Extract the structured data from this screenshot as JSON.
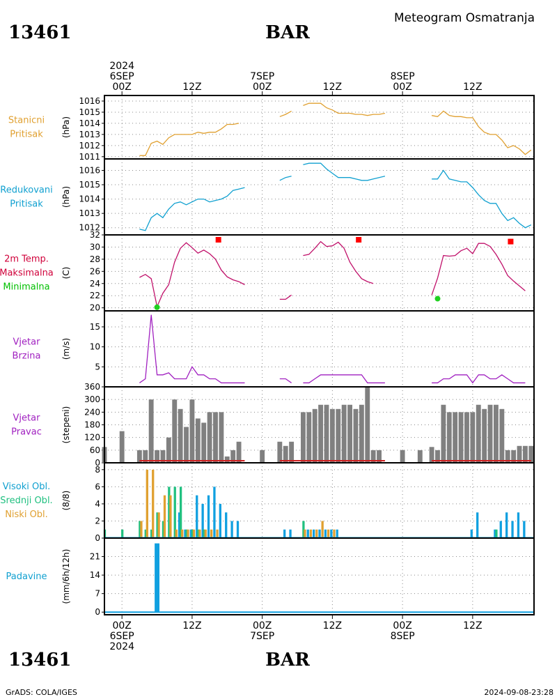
{
  "header": {
    "station_id": "13461",
    "station_name": "BAR",
    "title": "Meteogram Osmatranja"
  },
  "footer": {
    "credit": "GrADS: COLA/IGES",
    "timestamp": "2024-09-08-23:28"
  },
  "time_axis": {
    "top_labels": [
      {
        "lines": [
          "2024",
          "6SEP",
          "00Z"
        ],
        "hour": 0
      },
      {
        "lines": [
          "12Z"
        ],
        "hour": 12
      },
      {
        "lines": [
          "7SEP",
          "00Z"
        ],
        "hour": 24
      },
      {
        "lines": [
          "12Z"
        ],
        "hour": 36
      },
      {
        "lines": [
          "8SEP",
          "00Z"
        ],
        "hour": 48
      },
      {
        "lines": [
          "12Z"
        ],
        "hour": 60
      }
    ],
    "bottom_labels": [
      {
        "lines": [
          "00Z",
          "6SEP",
          "2024"
        ],
        "hour": 0
      },
      {
        "lines": [
          "12Z"
        ],
        "hour": 12
      },
      {
        "lines": [
          "00Z",
          "7SEP"
        ],
        "hour": 24
      },
      {
        "lines": [
          "12Z"
        ],
        "hour": 36
      },
      {
        "lines": [
          "00Z",
          "8SEP"
        ],
        "hour": 48
      },
      {
        "lines": [
          "12Z"
        ],
        "hour": 60
      }
    ],
    "hour_range": [
      -3,
      70.5
    ]
  },
  "colors": {
    "station_pressure": "#e0a030",
    "sea_pressure": "#10a0d0",
    "tmax_label": "#d0003a",
    "tmin_label": "#00c000",
    "tmax_marker": "#ff0000",
    "tmin_marker": "#20d020",
    "temp_line": "#c0106a",
    "wind": "#a020c0",
    "wind_bar": "#808080",
    "wind_base": "#d02020",
    "cloud_high": "#10a0e0",
    "cloud_mid": "#20c080",
    "cloud_low": "#e0a030",
    "precip": "#10a0e0"
  },
  "chart_data": [
    {
      "id": "station_pressure",
      "type": "line",
      "label": [
        "Stanicni",
        "Pritisak"
      ],
      "label_color": "#e0a030",
      "ylabel": "(hPa)",
      "ylim": [
        1010.8,
        1016.5
      ],
      "yticks": [
        1011,
        1012,
        1013,
        1014,
        1015,
        1016
      ],
      "series": [
        {
          "color": "#e0a030",
          "x": [
            3,
            4,
            5,
            6,
            7,
            8,
            9,
            10,
            11,
            12,
            13,
            14,
            15,
            16,
            17,
            18,
            19,
            20,
            21
          ],
          "y": [
            1011.1,
            1011.1,
            1012.2,
            1012.4,
            1012.1,
            1012.7,
            1013.0,
            1013.0,
            1013.0,
            1013.0,
            1013.2,
            1013.1,
            1013.2,
            1013.2,
            1013.5,
            1013.9,
            1013.9,
            1014.0,
            null
          ]
        },
        {
          "color": "#e0a030",
          "x": [
            27,
            28,
            29,
            30,
            31,
            32,
            33,
            34,
            35,
            36,
            37,
            38,
            39,
            40,
            41,
            42,
            43,
            44,
            45
          ],
          "y": [
            1014.6,
            1014.8,
            1015.1,
            null,
            1015.6,
            1015.8,
            1015.8,
            1015.8,
            1015.4,
            1015.2,
            1014.9,
            1014.9,
            1014.9,
            1014.8,
            1014.8,
            1014.7,
            1014.8,
            1014.8,
            1014.9
          ]
        },
        {
          "color": "#e0a030",
          "x": [
            53,
            54,
            55,
            56,
            57,
            58,
            59,
            60,
            61,
            62,
            63,
            64,
            65,
            66,
            67,
            68,
            69,
            70
          ],
          "y": [
            1014.7,
            1014.6,
            1015.1,
            1014.7,
            1014.6,
            1014.6,
            1014.5,
            1014.5,
            1013.7,
            1013.2,
            1013.0,
            1013.0,
            1012.5,
            1011.8,
            1012.0,
            1011.7,
            1011.2,
            1011.6
          ]
        }
      ]
    },
    {
      "id": "sea_pressure",
      "type": "line",
      "label": [
        "Redukovani",
        "Pritisak"
      ],
      "label_color": "#10a0d0",
      "ylabel": "(hPa)",
      "ylim": [
        1011.5,
        1016.8
      ],
      "yticks": [
        1012,
        1013,
        1014,
        1015,
        1016
      ],
      "series": [
        {
          "color": "#10a0d0",
          "x": [
            3,
            4,
            5,
            6,
            7,
            8,
            9,
            10,
            11,
            12,
            13,
            14,
            15,
            16,
            17,
            18,
            19,
            20,
            21
          ],
          "y": [
            1011.9,
            1011.8,
            1012.7,
            1013.0,
            1012.7,
            1013.3,
            1013.7,
            1013.8,
            1013.6,
            1013.8,
            1014.0,
            1014.0,
            1013.8,
            1013.9,
            1014.0,
            1014.2,
            1014.6,
            1014.7,
            1014.8
          ]
        },
        {
          "color": "#10a0d0",
          "x": [
            27,
            28,
            29,
            30,
            31,
            32,
            33,
            34,
            35,
            36,
            37,
            38,
            39,
            40,
            41,
            42,
            43,
            44,
            45
          ],
          "y": [
            1015.3,
            1015.5,
            1015.6,
            null,
            1016.4,
            1016.5,
            1016.5,
            1016.5,
            1016.1,
            1015.8,
            1015.5,
            1015.5,
            1015.5,
            1015.4,
            1015.3,
            1015.3,
            1015.4,
            1015.5,
            1015.6
          ]
        },
        {
          "color": "#10a0d0",
          "x": [
            53,
            54,
            55,
            56,
            57,
            58,
            59,
            60,
            61,
            62,
            63,
            64,
            65,
            66,
            67,
            68,
            69,
            70
          ],
          "y": [
            1015.4,
            1015.4,
            1016.0,
            1015.4,
            1015.3,
            1015.2,
            1015.2,
            1014.8,
            1014.3,
            1013.9,
            1013.7,
            1013.7,
            1013.0,
            1012.5,
            1012.7,
            1012.3,
            1012.0,
            1012.2
          ]
        }
      ]
    },
    {
      "id": "temperature",
      "type": "line",
      "label": [
        "2m Temp.",
        "Maksimalna",
        "Minimalna"
      ],
      "label_colors": [
        "#d0003a",
        "#d0003a",
        "#00c000"
      ],
      "ylabel": "(C)",
      "ylim": [
        19.5,
        32
      ],
      "yticks": [
        20,
        22,
        24,
        26,
        28,
        30,
        32
      ],
      "series": [
        {
          "color": "#c0106a",
          "x": [
            3,
            4,
            5,
            6,
            7,
            8,
            9,
            10,
            11,
            12,
            13,
            14,
            15,
            16,
            17,
            18,
            19,
            20,
            21
          ],
          "y": [
            25.0,
            25.5,
            24.8,
            20.2,
            22.4,
            23.8,
            27.5,
            29.8,
            30.7,
            29.9,
            29.0,
            29.5,
            28.9,
            28.0,
            26.2,
            25.1,
            24.6,
            24.3,
            23.8
          ]
        },
        {
          "color": "#c0106a",
          "x": [
            27,
            28,
            29,
            30,
            31,
            32,
            33,
            34,
            35,
            36,
            37,
            38,
            39,
            40,
            41,
            42,
            43,
            44,
            45
          ],
          "y": [
            21.4,
            21.4,
            22.1,
            null,
            28.6,
            28.8,
            29.8,
            30.9,
            30.1,
            30.2,
            30.8,
            29.8,
            27.5,
            26.0,
            24.8,
            24.3,
            24.0,
            null,
            null
          ]
        },
        {
          "color": "#c0106a",
          "x": [
            53,
            54,
            55,
            56,
            57,
            58,
            59,
            60,
            61,
            62,
            63,
            64,
            65,
            66,
            67,
            68,
            69,
            70
          ],
          "y": [
            22.1,
            24.9,
            28.6,
            28.5,
            28.6,
            29.4,
            29.8,
            28.9,
            30.6,
            30.6,
            30.1,
            28.8,
            27.2,
            25.3,
            24.4,
            23.6,
            22.8,
            null
          ]
        }
      ],
      "max_markers": [
        {
          "x": 16.5,
          "y": 31.2
        },
        {
          "x": 40.5,
          "y": 31.2
        },
        {
          "x": 66.5,
          "y": 30.9
        }
      ],
      "min_markers": [
        {
          "x": 6,
          "y": 20.1
        },
        {
          "x": 54,
          "y": 21.5
        }
      ]
    },
    {
      "id": "wind_speed",
      "type": "line",
      "label": [
        "Vjetar",
        "Brzina"
      ],
      "label_color": "#a020c0",
      "ylabel": "(m/s)",
      "ylim": [
        0,
        19
      ],
      "yticks": [
        5,
        10,
        15
      ],
      "series": [
        {
          "color": "#a020c0",
          "x": [
            3,
            4,
            5,
            6,
            7,
            8,
            9,
            10,
            11,
            12,
            13,
            14,
            15,
            16,
            17,
            18,
            19,
            20,
            21
          ],
          "y": [
            1,
            2,
            18,
            3,
            3,
            3.5,
            2,
            2,
            2,
            5,
            3,
            3,
            2,
            2,
            1,
            1,
            1,
            1,
            1
          ]
        },
        {
          "color": "#a020c0",
          "x": [
            27,
            28,
            29,
            30,
            31,
            32,
            33,
            34,
            35,
            36,
            37,
            38,
            39,
            40,
            41,
            42,
            43,
            44,
            45
          ],
          "y": [
            2,
            2,
            1,
            null,
            1,
            1,
            2,
            3,
            3,
            3,
            3,
            3,
            3,
            3,
            3,
            1,
            1,
            1,
            1
          ]
        },
        {
          "color": "#a020c0",
          "x": [
            53,
            54,
            55,
            56,
            57,
            58,
            59,
            60,
            61,
            62,
            63,
            64,
            65,
            66,
            67,
            68,
            69,
            70
          ],
          "y": [
            1,
            1,
            2,
            2,
            3,
            3,
            3,
            1,
            3,
            3,
            2,
            2,
            3,
            2,
            1,
            1,
            1,
            null
          ]
        }
      ]
    },
    {
      "id": "wind_direction",
      "type": "bar",
      "label": [
        "Vjetar",
        "Pravac"
      ],
      "label_color": "#a020c0",
      "ylabel": "(stepeni)",
      "ylim": [
        0,
        360
      ],
      "yticks": [
        0,
        60,
        120,
        180,
        240,
        300,
        360
      ],
      "bar_color": "#808080",
      "x": [
        -3,
        0,
        3,
        4,
        5,
        6,
        7,
        8,
        9,
        10,
        11,
        12,
        13,
        14,
        15,
        16,
        17,
        18,
        19,
        20,
        24,
        27,
        28,
        29,
        31,
        32,
        33,
        34,
        35,
        36,
        37,
        38,
        39,
        40,
        41,
        42,
        43,
        44,
        48,
        51,
        53,
        54,
        55,
        56,
        57,
        58,
        59,
        60,
        61,
        62,
        63,
        64,
        65,
        66,
        67,
        68,
        69,
        70
      ],
      "values": [
        75,
        150,
        60,
        60,
        300,
        60,
        60,
        120,
        300,
        255,
        170,
        300,
        210,
        190,
        240,
        240,
        240,
        30,
        60,
        100,
        60,
        100,
        80,
        100,
        240,
        240,
        255,
        275,
        275,
        255,
        255,
        275,
        275,
        255,
        275,
        360,
        60,
        60,
        60,
        60,
        75,
        60,
        275,
        240,
        240,
        240,
        240,
        240,
        275,
        255,
        275,
        275,
        255,
        60,
        60,
        80,
        80,
        80
      ]
    },
    {
      "id": "clouds",
      "type": "bar",
      "label": [
        "Visoki Obl.",
        "Srednji Obl.",
        "Niski Obl."
      ],
      "label_colors": [
        "#10a0d0",
        "#20c080",
        "#e0a030"
      ],
      "ylabel": "(8/8)",
      "ylim": [
        0,
        8.8
      ],
      "yticks": [
        0,
        2,
        4,
        6,
        8
      ],
      "series": [
        {
          "name": "Visoki Obl.",
          "color": "#10a0e0",
          "x": [
            10,
            11,
            12,
            13,
            14,
            15,
            16,
            17,
            18,
            19,
            20,
            28,
            29,
            32,
            33,
            34,
            35,
            36,
            37,
            60,
            61,
            64,
            65,
            66,
            67,
            68,
            69
          ],
          "values": [
            3,
            1,
            1,
            5,
            4,
            5,
            6,
            4,
            3,
            2,
            2,
            1,
            1,
            1,
            1,
            1,
            1,
            1,
            1,
            1,
            3,
            1,
            2,
            3,
            2,
            3,
            2
          ]
        },
        {
          "name": "Srednji Obl.",
          "color": "#20c080",
          "x": [
            -3,
            0,
            3,
            4,
            5,
            6,
            7,
            8,
            9,
            10,
            11,
            12,
            13,
            14,
            31,
            64
          ],
          "values": [
            1,
            1,
            2,
            1,
            1,
            3,
            2,
            6,
            6,
            6,
            1,
            1,
            1,
            1,
            2,
            1
          ]
        },
        {
          "name": "Niski Obl.",
          "color": "#e0a030",
          "x": [
            3,
            4,
            5,
            6,
            7,
            8,
            9,
            10,
            11,
            12,
            13,
            14,
            15,
            16,
            31,
            32,
            33,
            34,
            35,
            36
          ],
          "values": [
            2,
            8,
            8,
            3,
            5,
            5,
            1,
            1,
            1,
            1,
            1,
            1,
            1,
            1,
            1,
            1,
            1,
            2,
            1,
            1
          ]
        }
      ]
    },
    {
      "id": "precipitation",
      "type": "bar",
      "label": [
        "Padavine"
      ],
      "label_color": "#10a0d0",
      "ylabel": "(mm/6h/12h)",
      "ylim": [
        -1,
        28
      ],
      "yticks": [
        0,
        7,
        14,
        21
      ],
      "bar_color": "#10a0e0",
      "x": [
        6
      ],
      "values": [
        26
      ]
    }
  ]
}
